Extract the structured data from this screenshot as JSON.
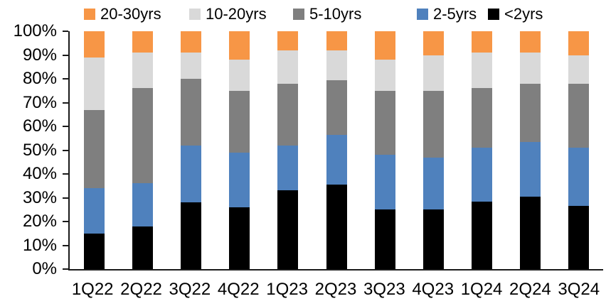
{
  "chart_data": {
    "type": "bar",
    "subtype": "stacked-100-percent",
    "title": "",
    "xlabel": "",
    "ylabel": "",
    "grid": false,
    "legend_position": "top",
    "legend_order": [
      "20-30yrs",
      "10-20yrs",
      "5-10yrs",
      "2-5yrs",
      "<2yrs"
    ],
    "categories": [
      "1Q22",
      "2Q22",
      "3Q22",
      "4Q22",
      "1Q23",
      "2Q23",
      "3Q23",
      "4Q23",
      "1Q24",
      "2Q24",
      "3Q24"
    ],
    "series": [
      {
        "name": "<2yrs",
        "color": "#000000",
        "values": [
          15,
          18,
          28,
          26,
          33,
          35.5,
          25,
          25,
          28.5,
          30.5,
          26.5
        ]
      },
      {
        "name": "2-5yrs",
        "color": "#4F81BD",
        "values": [
          19,
          18,
          24,
          23,
          19,
          21,
          23,
          22,
          22.5,
          23,
          24.5
        ]
      },
      {
        "name": "5-10yrs",
        "color": "#7F7F7F",
        "values": [
          33,
          40,
          28,
          26,
          26,
          23,
          27,
          28,
          25,
          24.5,
          27
        ]
      },
      {
        "name": "10-20yrs",
        "color": "#D9D9D9",
        "values": [
          22,
          15,
          11,
          13,
          14,
          12.5,
          13,
          15,
          15,
          13,
          12
        ]
      },
      {
        "name": "20-30yrs",
        "color": "#F79646",
        "values": [
          11,
          9,
          9,
          12,
          8,
          8,
          12,
          10,
          9,
          9,
          10
        ]
      }
    ],
    "y_axis": {
      "min": 0,
      "max": 100,
      "tick_step": 10,
      "tick_labels": [
        "0%",
        "10%",
        "20%",
        "30%",
        "40%",
        "50%",
        "60%",
        "70%",
        "80%",
        "90%",
        "100%"
      ]
    }
  }
}
